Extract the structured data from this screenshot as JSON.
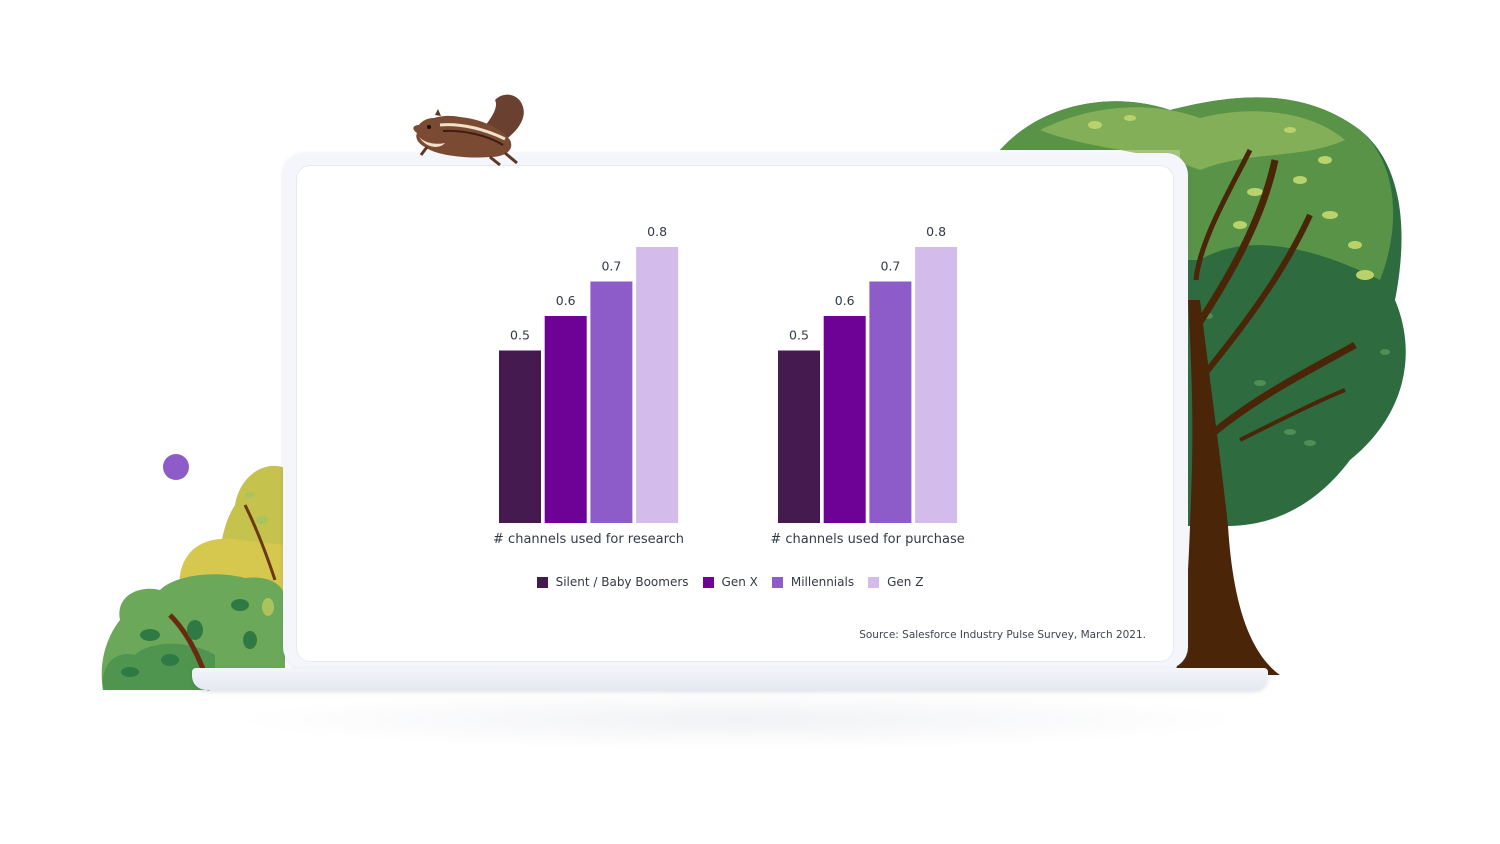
{
  "colors": {
    "silent_baby_boomers": "#451a4e",
    "gen_x": "#6f0296",
    "millennials": "#8d5cc8",
    "gen_z": "#d3bbec",
    "accent_dot": "#8d5cc8"
  },
  "decorations": [
    "chipmunk-illustration",
    "tree-illustration",
    "bush-illustration",
    "purple-dot"
  ],
  "legend": [
    {
      "label": "Silent / Baby Boomers",
      "color": "#451a4e"
    },
    {
      "label": "Gen X",
      "color": "#6f0296"
    },
    {
      "label": "Millennials",
      "color": "#8d5cc8"
    },
    {
      "label": "Gen Z",
      "color": "#d3bbec"
    }
  ],
  "source": "Source: Salesforce Industry Pulse Survey, March 2021.",
  "chart_data": {
    "type": "bar",
    "categories": [
      "# channels used for research",
      "# channels used for purchase"
    ],
    "series": [
      {
        "name": "Silent / Baby Boomers",
        "values": [
          0.5,
          0.5
        ]
      },
      {
        "name": "Gen X",
        "values": [
          0.6,
          0.6
        ]
      },
      {
        "name": "Millennials",
        "values": [
          0.7,
          0.7
        ]
      },
      {
        "name": "Gen Z",
        "values": [
          0.8,
          0.8
        ]
      }
    ],
    "value_labels": [
      "0.5",
      "0.6",
      "0.7",
      "0.8"
    ],
    "ylim": [
      0,
      0.8
    ],
    "grid": false,
    "legend_position": "bottom"
  }
}
